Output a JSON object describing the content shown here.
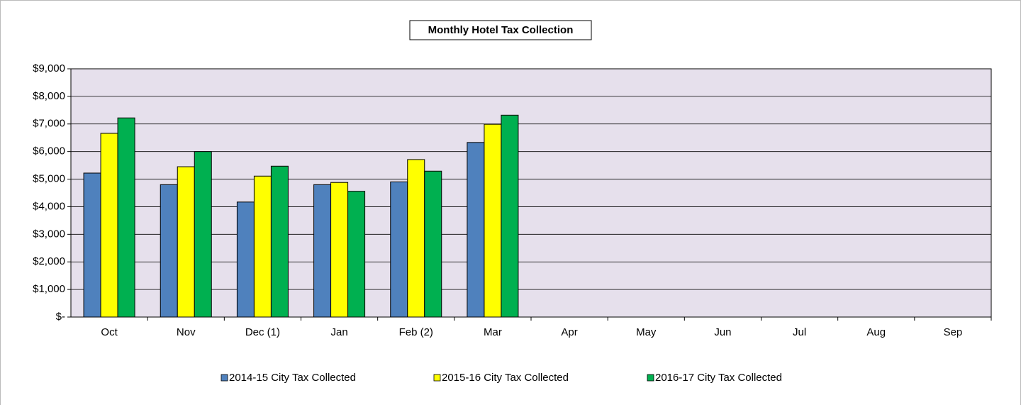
{
  "chart_data": {
    "type": "bar",
    "title": "Monthly Hotel Tax Collection",
    "categories": [
      "Oct",
      "Nov",
      "Dec (1)",
      "Jan",
      "Feb (2)",
      "Mar",
      "Apr",
      "May",
      "Jun",
      "Jul",
      "Aug",
      "Sep"
    ],
    "series": [
      {
        "name": "2014-15 City Tax Collected",
        "color": "#4f81bd",
        "values": [
          5220,
          4800,
          4170,
          4800,
          4900,
          6330,
          null,
          null,
          null,
          null,
          null,
          null
        ]
      },
      {
        "name": "2015-16 City Tax Collected",
        "color": "#ffff00",
        "values": [
          6660,
          5450,
          5110,
          4880,
          5710,
          6990,
          null,
          null,
          null,
          null,
          null,
          null
        ]
      },
      {
        "name": "2016-17 City Tax Collected",
        "color": "#00b050",
        "values": [
          7220,
          6000,
          5470,
          4560,
          5290,
          7320,
          null,
          null,
          null,
          null,
          null,
          null
        ]
      }
    ],
    "ylim": [
      0,
      9000
    ],
    "yticks": [
      {
        "value": 0,
        "label": "$-"
      },
      {
        "value": 1000,
        "label": "$1,000"
      },
      {
        "value": 2000,
        "label": "$2,000"
      },
      {
        "value": 3000,
        "label": "$3,000"
      },
      {
        "value": 4000,
        "label": "$4,000"
      },
      {
        "value": 5000,
        "label": "$5,000"
      },
      {
        "value": 6000,
        "label": "$6,000"
      },
      {
        "value": 7000,
        "label": "$7,000"
      },
      {
        "value": 8000,
        "label": "$8,000"
      },
      {
        "value": 9000,
        "label": "$9,000"
      }
    ],
    "grid": true,
    "legend": "bottom"
  }
}
